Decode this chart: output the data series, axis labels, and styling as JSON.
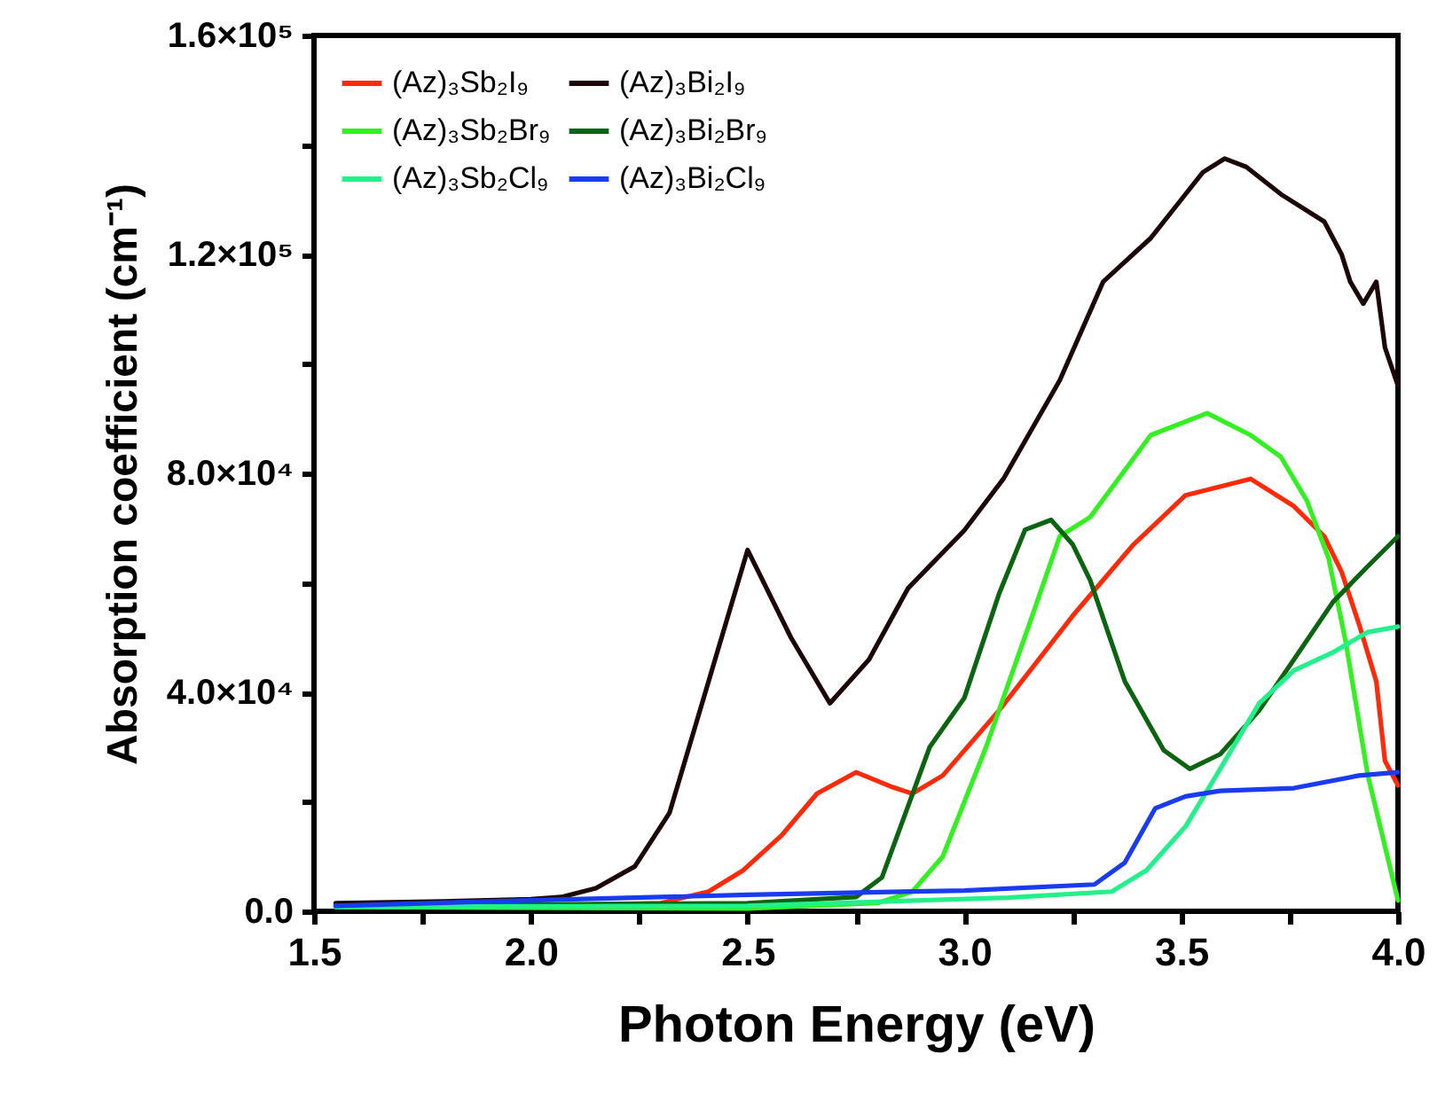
{
  "chart_data": {
    "type": "line",
    "xlabel": "Photon Energy (eV)",
    "ylabel": "Absorption coefficient (cm⁻¹)",
    "xlim": [
      1.5,
      4.0
    ],
    "ylim": [
      0,
      160000
    ],
    "xticks": [
      1.5,
      {
        "value": 1.75,
        "label": null
      },
      {
        "value": 2,
        "label": "2.0"
      },
      {
        "value": 2.25,
        "label": null
      },
      2.5,
      {
        "value": 2.75,
        "label": null
      },
      {
        "value": 3,
        "label": "3.0"
      },
      {
        "value": 3.25,
        "label": null
      },
      3.5,
      {
        "value": 3.75,
        "label": null
      },
      {
        "value": 4,
        "label": "4.0"
      }
    ],
    "yticks": [
      {
        "value": 0,
        "label": "0.0"
      },
      {
        "value": 20000,
        "label": null
      },
      {
        "value": 40000,
        "label": "4.0×10⁴"
      },
      {
        "value": 60000,
        "label": null
      },
      {
        "value": 80000,
        "label": "8.0×10⁴"
      },
      {
        "value": 100000,
        "label": null
      },
      {
        "value": 120000,
        "label": "1.2×10⁵"
      },
      {
        "value": 140000,
        "label": null
      },
      {
        "value": 160000,
        "label": "1.6×10⁵"
      }
    ],
    "grid": false,
    "legend": "top left",
    "marker": "none",
    "line_style": "solid",
    "series": [
      {
        "name": "(Az)₃Sb₂I₉",
        "color": "#ff2a0a",
        "x": [
          1.55,
          2.0,
          2.3,
          2.41,
          2.49,
          2.58,
          2.66,
          2.75,
          2.83,
          2.88,
          2.95,
          3.08,
          3.25,
          3.39,
          3.51,
          3.66,
          3.76,
          3.83,
          3.87,
          3.91,
          3.95,
          3.97,
          4.0
        ],
        "values": [
          1000,
          1000,
          1500,
          3600,
          7500,
          14000,
          21500,
          25400,
          22800,
          21500,
          24800,
          36700,
          54000,
          67000,
          76000,
          79000,
          74000,
          68500,
          62000,
          52500,
          42000,
          27500,
          23000
        ]
      },
      {
        "name": "(Az)₃Bi₂I₉",
        "color": "#1c0606",
        "x": [
          1.55,
          1.8,
          2.0,
          2.07,
          2.15,
          2.24,
          2.32,
          2.41,
          2.5,
          2.6,
          2.69,
          2.78,
          2.87,
          3.0,
          3.09,
          3.22,
          3.32,
          3.43,
          3.5,
          3.55,
          3.6,
          3.65,
          3.73,
          3.83,
          3.87,
          3.89,
          3.92,
          3.95,
          3.97,
          4.0
        ],
        "values": [
          1500,
          1800,
          2200,
          2600,
          4200,
          8200,
          18000,
          42000,
          66000,
          50000,
          38000,
          46000,
          59000,
          69600,
          79000,
          97000,
          115000,
          123000,
          130000,
          135000,
          137500,
          136000,
          131000,
          126000,
          120000,
          115000,
          111000,
          115000,
          103000,
          96000
        ]
      },
      {
        "name": "(Az)₃Sb₂Br₉",
        "color": "#33f020",
        "x": [
          1.55,
          2.5,
          2.8,
          2.88,
          2.95,
          3.05,
          3.15,
          3.22,
          3.29,
          3.43,
          3.56,
          3.66,
          3.73,
          3.79,
          3.84,
          3.88,
          3.93,
          4.0
        ],
        "values": [
          800,
          500,
          1500,
          3600,
          10000,
          30000,
          52500,
          68500,
          72000,
          87000,
          91000,
          87000,
          83000,
          75000,
          64500,
          49000,
          25000,
          2000
        ]
      },
      {
        "name": "(Az)₃Bi₂Br₉",
        "color": "#0b6410",
        "x": [
          1.55,
          2.5,
          2.75,
          2.81,
          2.92,
          3.0,
          3.08,
          3.14,
          3.2,
          3.25,
          3.29,
          3.37,
          3.46,
          3.52,
          3.59,
          3.68,
          3.76,
          3.85,
          3.93,
          4.0
        ],
        "values": [
          1000,
          1500,
          2600,
          6200,
          30000,
          39000,
          58000,
          69700,
          71500,
          67000,
          60500,
          42000,
          29400,
          26000,
          28700,
          36700,
          46000,
          56500,
          63000,
          68500
        ]
      },
      {
        "name": "(Az)₃Sb₂Cl₉",
        "color": "#22f08a",
        "x": [
          1.55,
          2.5,
          3.1,
          3.34,
          3.42,
          3.51,
          3.59,
          3.68,
          3.76,
          3.85,
          3.93,
          4.0
        ],
        "values": [
          800,
          1000,
          2500,
          3600,
          7500,
          15500,
          26000,
          38000,
          44000,
          47300,
          51000,
          52000
        ]
      },
      {
        "name": "(Az)₃Bi₂Cl₉",
        "color": "#1a3cf0",
        "x": [
          1.55,
          2.0,
          2.5,
          3.0,
          3.3,
          3.37,
          3.44,
          3.51,
          3.59,
          3.76,
          3.91,
          4.0
        ],
        "values": [
          1000,
          2000,
          3000,
          3800,
          4900,
          8900,
          18800,
          21000,
          22000,
          22500,
          24800,
          25400
        ]
      }
    ]
  }
}
